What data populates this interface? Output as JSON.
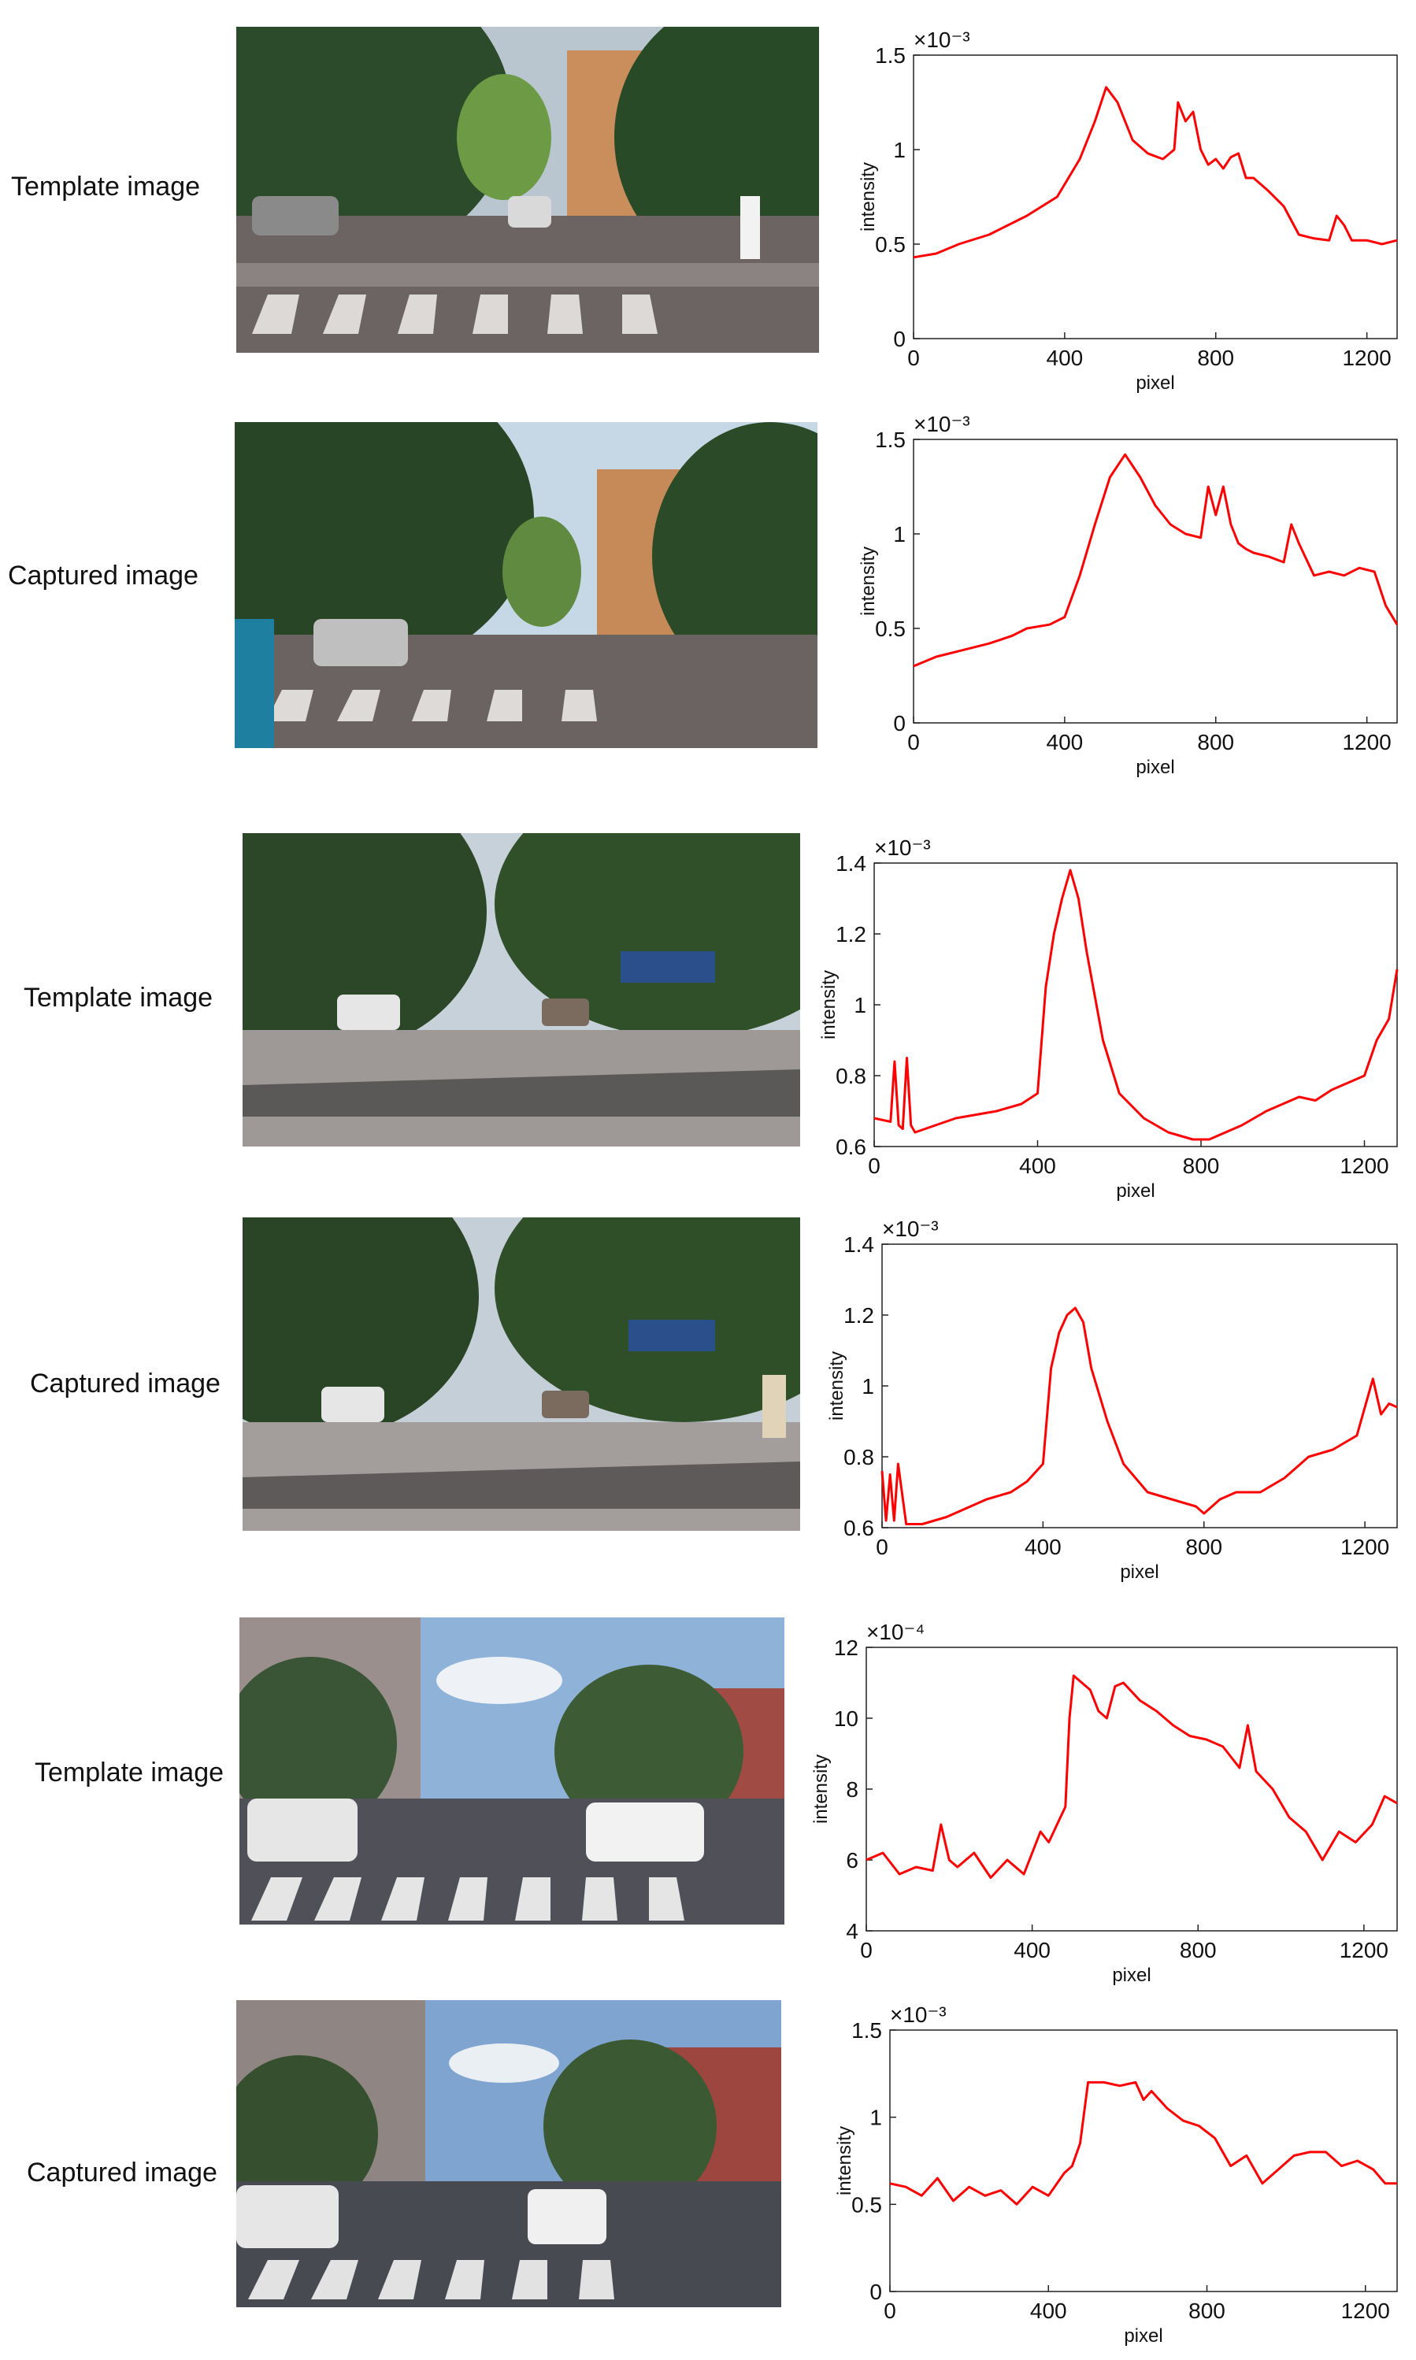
{
  "rows": [
    {
      "label": "Template image"
    },
    {
      "label": "Captured image"
    },
    {
      "label": "Template image"
    },
    {
      "label": "Captured image"
    },
    {
      "label": "Template image"
    },
    {
      "label": "Captured image"
    }
  ],
  "chart_data": [
    {
      "type": "line",
      "xlabel": "pixel",
      "ylabel": "intensity",
      "xlim": [
        0,
        1280
      ],
      "ylim": [
        0,
        1.5
      ],
      "xticks": [
        0,
        400,
        800,
        1200
      ],
      "yticks": [
        0,
        0.5,
        1,
        1.5
      ],
      "ytick_labels": [
        "0",
        "0.5",
        "1",
        "1.5"
      ],
      "scale_label": "×10⁻³",
      "color": "#ff0000",
      "series": [
        {
          "x": [
            0,
            60,
            120,
            200,
            300,
            380,
            440,
            480,
            510,
            540,
            580,
            620,
            660,
            690,
            700,
            720,
            740,
            760,
            780,
            800,
            820,
            840,
            860,
            880,
            900,
            940,
            980,
            1020,
            1060,
            1100,
            1120,
            1140,
            1160,
            1200,
            1240,
            1280
          ],
          "y": [
            0.43,
            0.45,
            0.5,
            0.55,
            0.65,
            0.75,
            0.95,
            1.15,
            1.33,
            1.25,
            1.05,
            0.98,
            0.95,
            1.0,
            1.25,
            1.15,
            1.2,
            1.0,
            0.92,
            0.95,
            0.9,
            0.96,
            0.98,
            0.85,
            0.85,
            0.78,
            0.7,
            0.55,
            0.53,
            0.52,
            0.65,
            0.6,
            0.52,
            0.52,
            0.5,
            0.52
          ]
        }
      ]
    },
    {
      "type": "line",
      "xlabel": "pixel",
      "ylabel": "intensity",
      "xlim": [
        0,
        1280
      ],
      "ylim": [
        0,
        1.5
      ],
      "xticks": [
        0,
        400,
        800,
        1200
      ],
      "yticks": [
        0,
        0.5,
        1,
        1.5
      ],
      "ytick_labels": [
        "0",
        "0.5",
        "1",
        "1.5"
      ],
      "scale_label": "×10⁻³",
      "color": "#ff0000",
      "series": [
        {
          "x": [
            0,
            60,
            120,
            200,
            260,
            300,
            360,
            400,
            440,
            480,
            520,
            560,
            600,
            640,
            680,
            720,
            760,
            780,
            800,
            820,
            840,
            860,
            880,
            900,
            940,
            980,
            1000,
            1020,
            1060,
            1100,
            1140,
            1180,
            1220,
            1250,
            1280
          ],
          "y": [
            0.3,
            0.35,
            0.38,
            0.42,
            0.46,
            0.5,
            0.52,
            0.56,
            0.78,
            1.05,
            1.3,
            1.42,
            1.3,
            1.15,
            1.05,
            1.0,
            0.98,
            1.25,
            1.1,
            1.25,
            1.05,
            0.95,
            0.92,
            0.9,
            0.88,
            0.85,
            1.05,
            0.95,
            0.78,
            0.8,
            0.78,
            0.82,
            0.8,
            0.62,
            0.52
          ]
        }
      ]
    },
    {
      "type": "line",
      "xlabel": "pixel",
      "ylabel": "intensity",
      "xlim": [
        0,
        1280
      ],
      "ylim": [
        0.6,
        1.4
      ],
      "xticks": [
        0,
        400,
        800,
        1200
      ],
      "yticks": [
        0.6,
        0.8,
        1,
        1.2,
        1.4
      ],
      "ytick_labels": [
        "0.6",
        "0.8",
        "1",
        "1.2",
        "1.4"
      ],
      "scale_label": "×10⁻³",
      "color": "#ff0000",
      "series": [
        {
          "x": [
            0,
            40,
            50,
            60,
            70,
            80,
            90,
            100,
            150,
            200,
            300,
            360,
            400,
            420,
            440,
            460,
            480,
            500,
            520,
            560,
            600,
            660,
            720,
            780,
            820,
            860,
            900,
            960,
            1000,
            1040,
            1080,
            1120,
            1160,
            1200,
            1230,
            1260,
            1280
          ],
          "y": [
            0.68,
            0.67,
            0.84,
            0.66,
            0.65,
            0.85,
            0.66,
            0.64,
            0.66,
            0.68,
            0.7,
            0.72,
            0.75,
            1.05,
            1.2,
            1.3,
            1.38,
            1.3,
            1.15,
            0.9,
            0.75,
            0.68,
            0.64,
            0.62,
            0.62,
            0.64,
            0.66,
            0.7,
            0.72,
            0.74,
            0.73,
            0.76,
            0.78,
            0.8,
            0.9,
            0.96,
            1.1
          ]
        }
      ]
    },
    {
      "type": "line",
      "xlabel": "pixel",
      "ylabel": "intensity",
      "xlim": [
        0,
        1280
      ],
      "ylim": [
        0.6,
        1.4
      ],
      "xticks": [
        0,
        400,
        800,
        1200
      ],
      "yticks": [
        0.6,
        0.8,
        1,
        1.2,
        1.4
      ],
      "ytick_labels": [
        "0.6",
        "0.8",
        "1",
        "1.2",
        "1.4"
      ],
      "scale_label": "×10⁻³",
      "color": "#ff0000",
      "series": [
        {
          "x": [
            0,
            10,
            20,
            30,
            40,
            60,
            100,
            160,
            200,
            260,
            320,
            360,
            400,
            420,
            440,
            460,
            480,
            500,
            520,
            560,
            600,
            660,
            720,
            780,
            800,
            840,
            880,
            940,
            1000,
            1060,
            1120,
            1180,
            1220,
            1240,
            1260,
            1280
          ],
          "y": [
            0.76,
            0.62,
            0.75,
            0.62,
            0.78,
            0.61,
            0.61,
            0.63,
            0.65,
            0.68,
            0.7,
            0.73,
            0.78,
            1.05,
            1.15,
            1.2,
            1.22,
            1.18,
            1.05,
            0.9,
            0.78,
            0.7,
            0.68,
            0.66,
            0.64,
            0.68,
            0.7,
            0.7,
            0.74,
            0.8,
            0.82,
            0.86,
            1.02,
            0.92,
            0.95,
            0.94
          ]
        }
      ]
    },
    {
      "type": "line",
      "xlabel": "pixel",
      "ylabel": "intensity",
      "xlim": [
        0,
        1280
      ],
      "ylim": [
        4,
        12
      ],
      "xticks": [
        0,
        400,
        800,
        1200
      ],
      "yticks": [
        4,
        6,
        8,
        10,
        12
      ],
      "ytick_labels": [
        "4",
        "6",
        "8",
        "10",
        "12"
      ],
      "scale_label": "×10⁻⁴",
      "color": "#ff0000",
      "series": [
        {
          "x": [
            0,
            40,
            80,
            120,
            160,
            180,
            200,
            220,
            260,
            300,
            340,
            380,
            420,
            440,
            460,
            480,
            490,
            500,
            540,
            560,
            580,
            600,
            620,
            660,
            700,
            740,
            780,
            820,
            860,
            900,
            920,
            940,
            980,
            1020,
            1060,
            1100,
            1140,
            1180,
            1220,
            1250,
            1280
          ],
          "y": [
            6.0,
            6.2,
            5.6,
            5.8,
            5.7,
            7.0,
            6.0,
            5.8,
            6.2,
            5.5,
            6.0,
            5.6,
            6.8,
            6.5,
            7.0,
            7.5,
            10.0,
            11.2,
            10.8,
            10.2,
            10.0,
            10.9,
            11.0,
            10.5,
            10.2,
            9.8,
            9.5,
            9.4,
            9.2,
            8.6,
            9.8,
            8.5,
            8.0,
            7.2,
            6.8,
            6.0,
            6.8,
            6.5,
            7.0,
            7.8,
            7.6
          ]
        }
      ]
    },
    {
      "type": "line",
      "xlabel": "pixel",
      "ylabel": "intensity",
      "xlim": [
        0,
        1280
      ],
      "ylim": [
        0,
        1.5
      ],
      "xticks": [
        0,
        400,
        800,
        1200
      ],
      "yticks": [
        0,
        0.5,
        1,
        1.5
      ],
      "ytick_labels": [
        "0",
        "0.5",
        "1",
        "1.5"
      ],
      "scale_label": "×10⁻³",
      "color": "#ff0000",
      "series": [
        {
          "x": [
            0,
            40,
            80,
            120,
            160,
            200,
            240,
            280,
            320,
            360,
            400,
            440,
            460,
            480,
            500,
            540,
            580,
            620,
            640,
            660,
            700,
            740,
            780,
            820,
            860,
            900,
            940,
            980,
            1020,
            1060,
            1100,
            1140,
            1180,
            1220,
            1250,
            1280
          ],
          "y": [
            0.62,
            0.6,
            0.55,
            0.65,
            0.52,
            0.6,
            0.55,
            0.58,
            0.5,
            0.6,
            0.55,
            0.68,
            0.72,
            0.85,
            1.2,
            1.2,
            1.18,
            1.2,
            1.1,
            1.15,
            1.05,
            0.98,
            0.95,
            0.88,
            0.72,
            0.78,
            0.62,
            0.7,
            0.78,
            0.8,
            0.8,
            0.72,
            0.75,
            0.7,
            0.62,
            0.62
          ]
        }
      ]
    }
  ]
}
